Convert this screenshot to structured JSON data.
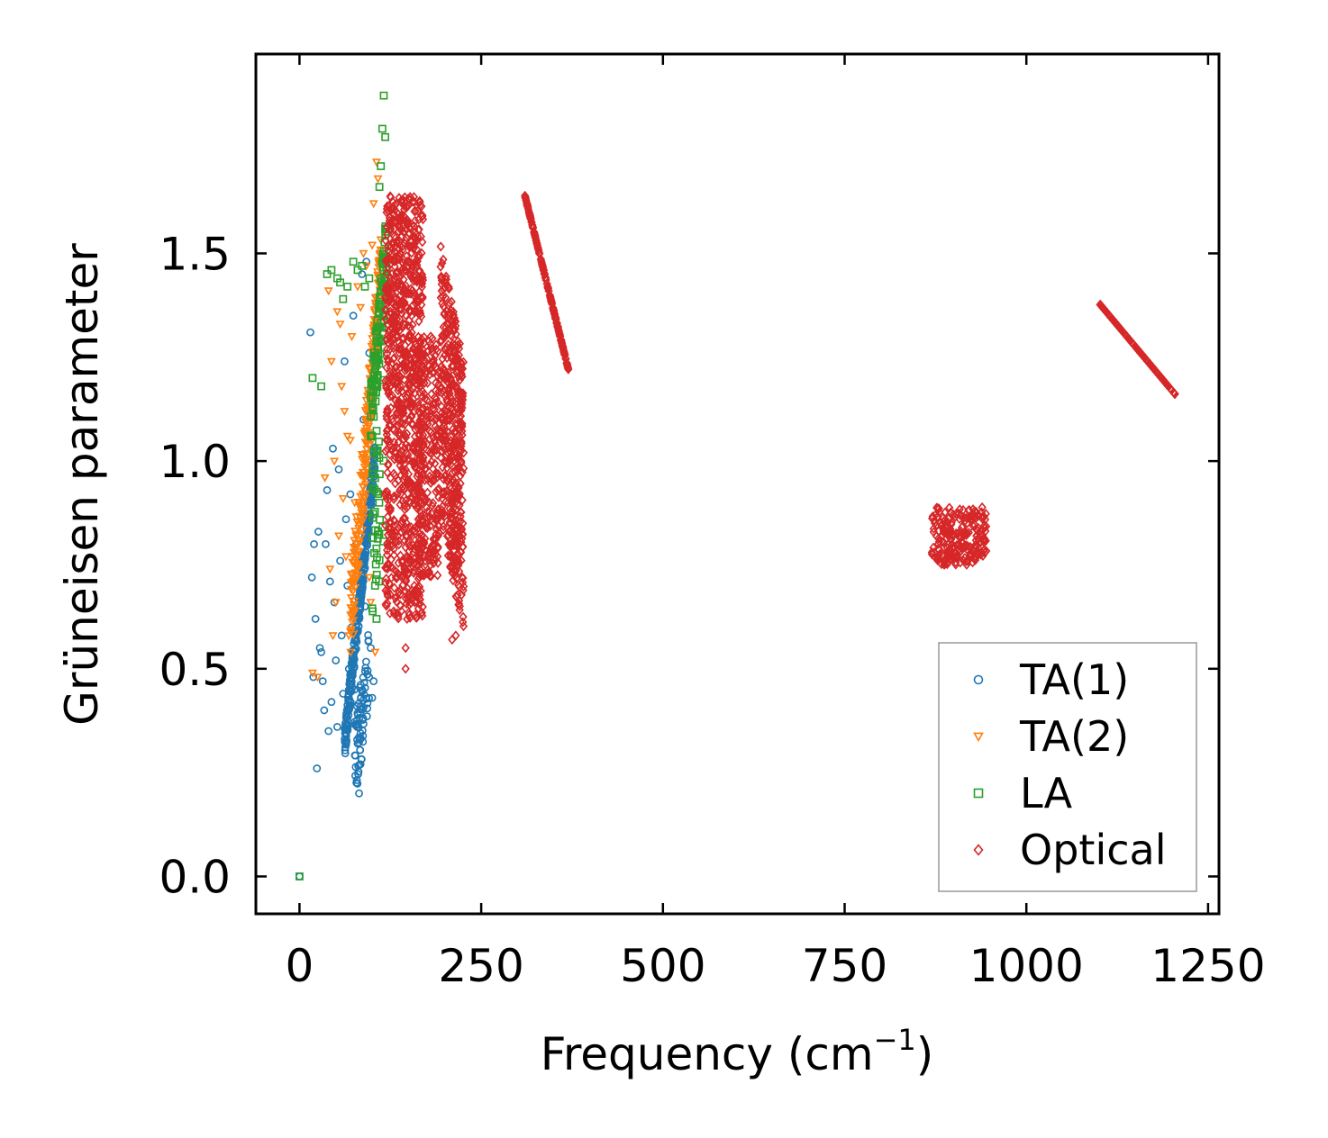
{
  "chart_data": {
    "type": "scatter",
    "title": "",
    "xlabel": "Frequency (cm",
    "xlabel_sup": "−1",
    "xlabel_end": ")",
    "ylabel": "Grüneisen parameter",
    "xlim": [
      -60,
      1265
    ],
    "ylim": [
      -0.09,
      1.98
    ],
    "xticks": [
      0,
      250,
      500,
      750,
      1000,
      1250
    ],
    "xtick_labels": [
      "0",
      "250",
      "500",
      "750",
      "1000",
      "1250"
    ],
    "yticks": [
      0.0,
      0.5,
      1.0,
      1.5
    ],
    "ytick_labels": [
      "0.0",
      "0.5",
      "1.0",
      "1.5"
    ],
    "legend_position": "lower-right",
    "series": [
      {
        "name": "TA(1)",
        "marker": "circle",
        "color": "#1f77b4",
        "points": [
          [
            0,
            0.0
          ],
          [
            15,
            1.31
          ],
          [
            17,
            0.72
          ],
          [
            19,
            0.48
          ],
          [
            20,
            0.8
          ],
          [
            22,
            0.62
          ],
          [
            24,
            0.26
          ],
          [
            26,
            0.83
          ],
          [
            28,
            0.55
          ],
          [
            30,
            0.54
          ],
          [
            32,
            0.47
          ],
          [
            34,
            0.4
          ],
          [
            36,
            0.8
          ],
          [
            38,
            0.93
          ],
          [
            40,
            0.35
          ],
          [
            42,
            0.71
          ],
          [
            44,
            0.42
          ],
          [
            46,
            1.03
          ],
          [
            48,
            0.66
          ],
          [
            50,
            0.52
          ],
          [
            52,
            0.36
          ],
          [
            54,
            0.98
          ],
          [
            56,
            0.76
          ],
          [
            58,
            0.58
          ],
          [
            60,
            0.44
          ],
          [
            62,
            1.24
          ],
          [
            64,
            0.86
          ],
          [
            66,
            0.7
          ],
          [
            68,
            0.5
          ],
          [
            70,
            0.92
          ],
          [
            72,
            0.6
          ],
          [
            74,
            1.35
          ],
          [
            76,
            0.45
          ],
          [
            78,
            0.8
          ],
          [
            80,
            0.32
          ],
          [
            82,
            0.2
          ],
          [
            84,
            0.27
          ],
          [
            86,
            1.45
          ],
          [
            88,
            1.1
          ],
          [
            90,
            0.65
          ],
          [
            92,
            1.48
          ],
          [
            94,
            0.9
          ],
          [
            96,
            1.26
          ],
          [
            98,
            0.55
          ],
          [
            100,
            0.43
          ],
          [
            102,
            0.47
          ]
        ],
        "clusters": [
          {
            "x": [
              62,
              104
            ],
            "y": [
              0.28,
              1.05
            ],
            "n": 340,
            "slope": 0.9
          },
          {
            "x": [
              76,
              96
            ],
            "y": [
              0.18,
              0.6
            ],
            "n": 70,
            "slope": 0.5
          }
        ]
      },
      {
        "name": "TA(2)",
        "marker": "triangle-down",
        "color": "#ff7f0e",
        "points": [
          [
            18,
            0.49
          ],
          [
            25,
            0.48
          ],
          [
            35,
            0.96
          ],
          [
            40,
            1.41
          ],
          [
            42,
            0.74
          ],
          [
            44,
            1.24
          ],
          [
            46,
            0.58
          ],
          [
            48,
            1.0
          ],
          [
            50,
            0.66
          ],
          [
            52,
            1.36
          ],
          [
            54,
            0.82
          ],
          [
            56,
            1.33
          ],
          [
            58,
            1.18
          ],
          [
            60,
            0.91
          ],
          [
            62,
            1.12
          ],
          [
            64,
            0.77
          ],
          [
            66,
            1.06
          ],
          [
            68,
            0.58
          ],
          [
            70,
            1.05
          ],
          [
            72,
            1.3
          ],
          [
            76,
            0.9
          ],
          [
            80,
            1.42
          ],
          [
            84,
            1.37
          ],
          [
            88,
            1.5
          ],
          [
            92,
            1.47
          ],
          [
            96,
            0.72
          ],
          [
            98,
            0.66
          ],
          [
            100,
            1.52
          ],
          [
            102,
            1.62
          ],
          [
            104,
            0.54
          ],
          [
            106,
            1.72
          ],
          [
            108,
            1.68
          ]
        ],
        "clusters": [
          {
            "x": [
              70,
              112
            ],
            "y": [
              0.5,
              1.55
            ],
            "n": 260,
            "slope": 0.8
          }
        ]
      },
      {
        "name": "LA",
        "marker": "square",
        "color": "#2ca02c",
        "points": [
          [
            0,
            0.0
          ],
          [
            18,
            1.2
          ],
          [
            30,
            1.18
          ],
          [
            38,
            1.45
          ],
          [
            44,
            1.46
          ],
          [
            52,
            1.44
          ],
          [
            56,
            1.43
          ],
          [
            60,
            1.39
          ],
          [
            66,
            1.42
          ],
          [
            74,
            1.48
          ],
          [
            80,
            1.46
          ],
          [
            86,
            1.47
          ],
          [
            90,
            1.42
          ],
          [
            96,
            1.44
          ],
          [
            104,
            0.7
          ],
          [
            106,
            0.62
          ],
          [
            110,
            1.66
          ],
          [
            112,
            1.71
          ],
          [
            114,
            1.8
          ],
          [
            116,
            1.88
          ],
          [
            118,
            1.78
          ]
        ],
        "clusters": [
          {
            "x": [
              98,
              120
            ],
            "y": [
              1.0,
              1.6
            ],
            "n": 120,
            "slope": 0.7
          },
          {
            "x": [
              100,
              116
            ],
            "y": [
              0.6,
              1.2
            ],
            "n": 40,
            "slope": 0.3
          }
        ]
      },
      {
        "name": "Optical",
        "marker": "diamond",
        "color": "#d62728",
        "points": [
          [
            146,
            0.5
          ],
          [
            146,
            0.55
          ],
          [
            148,
            0.62
          ],
          [
            150,
            0.68
          ],
          [
            158,
            0.7
          ],
          [
            164,
            0.8
          ],
          [
            188,
            1.28
          ],
          [
            220,
            0.82
          ],
          [
            222,
            0.78
          ],
          [
            210,
            0.57
          ],
          [
            215,
            0.58
          ]
        ],
        "clusters": [
          {
            "x": [
              118,
              170
            ],
            "y": [
              0.62,
              1.64
            ],
            "n": 900,
            "slope": 0.0
          },
          {
            "x": [
              162,
              192
            ],
            "y": [
              0.72,
              1.3
            ],
            "n": 260,
            "slope": 0.0
          },
          {
            "x": [
              194,
              226
            ],
            "y": [
              0.58,
              1.52
            ],
            "n": 460,
            "slope": -0.3
          },
          {
            "x": [
              310,
              370
            ],
            "y": [
              1.22,
              1.64
            ],
            "n": 170,
            "slope": -1.0
          },
          {
            "x": [
              870,
              945
            ],
            "y": [
              0.75,
              0.89
            ],
            "n": 220,
            "slope": 0.0
          },
          {
            "x": [
              1100,
              1205
            ],
            "y": [
              1.16,
              1.38
            ],
            "n": 190,
            "slope": -1.0
          }
        ]
      }
    ]
  }
}
